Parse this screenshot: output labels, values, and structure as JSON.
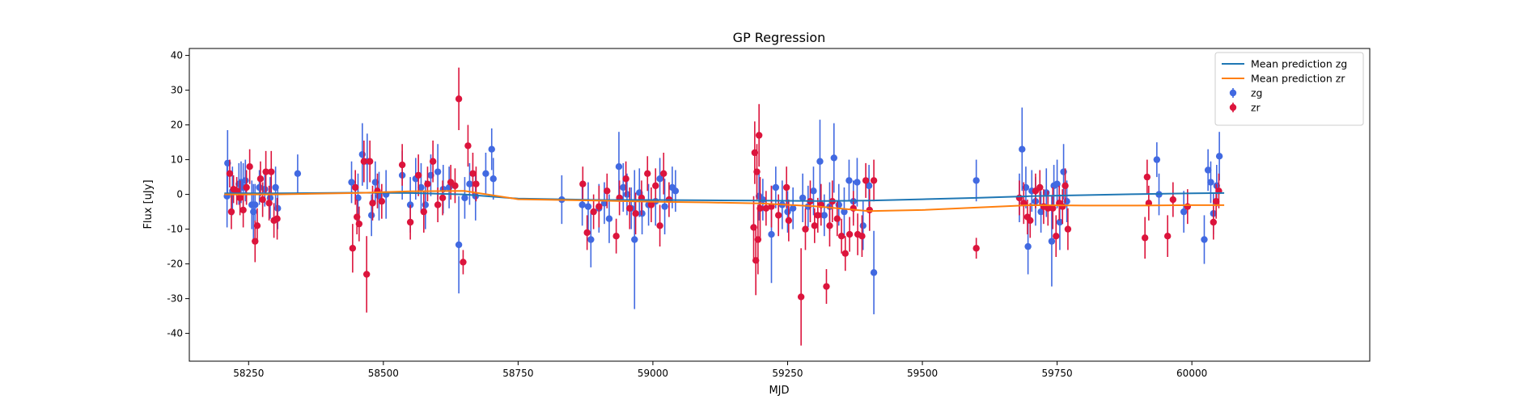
{
  "chart_data": {
    "type": "scatter",
    "title": "GP Regression",
    "xlabel": "MJD",
    "ylabel": "Flux [uJy]",
    "xlim": [
      58140,
      60330
    ],
    "ylim": [
      -48,
      42
    ],
    "xticks": [
      58250,
      58500,
      58750,
      59000,
      59250,
      59500,
      59750,
      60000
    ],
    "yticks": [
      -40,
      -30,
      -20,
      -10,
      0,
      10,
      20,
      30,
      40
    ],
    "grid": false,
    "legend_position": "top-right",
    "colors": {
      "zg": "#4169e1",
      "zr": "#dc143c",
      "mean_zg": "#1f77b4",
      "mean_zr": "#ff7f0e"
    },
    "series": [
      {
        "name": "Mean prediction zg",
        "kind": "line",
        "color": "#1f77b4",
        "x": [
          58205,
          58300,
          58450,
          58550,
          58650,
          58750,
          58900,
          59000,
          59100,
          59200,
          59300,
          59400,
          59500,
          59600,
          59700,
          59800,
          59900,
          60000,
          60060
        ],
        "y": [
          0.3,
          0.3,
          0.5,
          0.4,
          0.0,
          -1.2,
          -1.6,
          -1.6,
          -1.7,
          -1.8,
          -1.9,
          -1.8,
          -1.4,
          -1.0,
          -0.5,
          -0.2,
          0.1,
          0.3,
          0.4
        ]
      },
      {
        "name": "Mean prediction zr",
        "kind": "line",
        "color": "#ff7f0e",
        "x": [
          58205,
          58300,
          58450,
          58550,
          58650,
          58750,
          58900,
          59000,
          59100,
          59200,
          59300,
          59400,
          59500,
          59600,
          59700,
          59800,
          59900,
          60000,
          60060
        ],
        "y": [
          0.0,
          0.0,
          0.4,
          0.9,
          1.0,
          -1.4,
          -1.8,
          -2.1,
          -2.3,
          -2.6,
          -3.4,
          -4.8,
          -4.5,
          -3.8,
          -3.1,
          -3.2,
          -3.2,
          -3.1,
          -3.1
        ]
      },
      {
        "name": "zg",
        "kind": "errorbar",
        "color": "#4169e1",
        "points": [
          [
            58210,
            -0.5,
            9
          ],
          [
            58211,
            9,
            9.5
          ],
          [
            58220,
            1,
            7
          ],
          [
            58232,
            3,
            6
          ],
          [
            58236,
            3.5,
            6
          ],
          [
            58240,
            2,
            7
          ],
          [
            58244,
            4,
            6
          ],
          [
            58256,
            -3,
            7
          ],
          [
            58259,
            -5,
            8
          ],
          [
            58262,
            -3,
            6
          ],
          [
            58270,
            2,
            5
          ],
          [
            58280,
            1.5,
            5
          ],
          [
            58290,
            -1,
            6
          ],
          [
            58300,
            2,
            6
          ],
          [
            58304,
            -4,
            6
          ],
          [
            58341,
            6,
            5.5
          ],
          [
            58441,
            3.5,
            6
          ],
          [
            58453,
            -1,
            7
          ],
          [
            58461,
            11.5,
            9
          ],
          [
            58470,
            9.5,
            8
          ],
          [
            58478,
            -6,
            6
          ],
          [
            58485,
            3.5,
            6
          ],
          [
            58492,
            -0.5,
            7
          ],
          [
            58505,
            0,
            7
          ],
          [
            58535,
            5.5,
            7
          ],
          [
            58550,
            -3,
            8
          ],
          [
            58560,
            4.5,
            6
          ],
          [
            58570,
            2,
            7
          ],
          [
            58578,
            -3,
            7
          ],
          [
            58588,
            5.5,
            6
          ],
          [
            58601,
            6.5,
            8
          ],
          [
            58611,
            1.5,
            7
          ],
          [
            58622,
            2,
            6
          ],
          [
            58640,
            -14.5,
            14
          ],
          [
            58651,
            -1,
            6
          ],
          [
            58660,
            3,
            6
          ],
          [
            58671,
            -0.5,
            7
          ],
          [
            58690,
            6,
            6
          ],
          [
            58701,
            13,
            6
          ],
          [
            58704,
            4.5,
            6
          ],
          [
            58831,
            -1.5,
            7
          ],
          [
            58869,
            -3,
            6
          ],
          [
            58880,
            -3.5,
            7
          ],
          [
            58885,
            -13,
            8
          ],
          [
            58900,
            -4,
            7
          ],
          [
            58910,
            -2.5,
            6
          ],
          [
            58919,
            -7,
            7
          ],
          [
            58937,
            8,
            10
          ],
          [
            58945,
            2,
            7
          ],
          [
            58952,
            0,
            6
          ],
          [
            58960,
            -4,
            6
          ],
          [
            58966,
            -13,
            20
          ],
          [
            58975,
            0.5,
            7
          ],
          [
            58980,
            -5.5,
            6
          ],
          [
            58992,
            -3,
            6
          ],
          [
            59005,
            -2,
            7
          ],
          [
            59013,
            4.5,
            6
          ],
          [
            59022,
            -3.5,
            8
          ],
          [
            59036,
            2,
            6
          ],
          [
            59042,
            1,
            6
          ],
          [
            59197,
            -0.5,
            7
          ],
          [
            59204,
            -1.5,
            6
          ],
          [
            59220,
            -11.5,
            14
          ],
          [
            59228,
            2,
            6
          ],
          [
            59240,
            -3,
            7
          ],
          [
            59250,
            -5,
            6
          ],
          [
            59260,
            -4,
            6
          ],
          [
            59278,
            -1,
            7
          ],
          [
            59288,
            -3.5,
            6
          ],
          [
            59298,
            1,
            7
          ],
          [
            59310,
            9.5,
            12
          ],
          [
            59318,
            -6,
            6
          ],
          [
            59328,
            -3.5,
            7
          ],
          [
            59336,
            10.5,
            10
          ],
          [
            59345,
            -3,
            6
          ],
          [
            59355,
            -5,
            7
          ],
          [
            59364,
            4,
            6
          ],
          [
            59372,
            -2,
            6
          ],
          [
            59379,
            3.5,
            7
          ],
          [
            59390,
            -9,
            7
          ],
          [
            59401,
            2.5,
            6
          ],
          [
            59410,
            -22.5,
            12
          ],
          [
            59600,
            4,
            6
          ],
          [
            59680,
            -1,
            7
          ],
          [
            59685,
            13,
            12
          ],
          [
            59692,
            2,
            6
          ],
          [
            59696,
            -15,
            8
          ],
          [
            59703,
            1,
            6
          ],
          [
            59710,
            -2,
            7
          ],
          [
            59720,
            -5,
            6
          ],
          [
            59730,
            0.5,
            7
          ],
          [
            59740,
            -13.5,
            13
          ],
          [
            59744,
            2.5,
            6
          ],
          [
            59750,
            3,
            7
          ],
          [
            59755,
            -8,
            8
          ],
          [
            59762,
            6.5,
            8
          ],
          [
            59768,
            -2,
            6
          ],
          [
            59935,
            10,
            5
          ],
          [
            59939,
            0,
            6
          ],
          [
            59985,
            -5,
            6
          ],
          [
            60023,
            -13,
            7
          ],
          [
            60030,
            7,
            6
          ],
          [
            60035,
            3.5,
            6
          ],
          [
            60040,
            -5.5,
            6
          ],
          [
            60046,
            2.5,
            6
          ],
          [
            60051,
            11,
            7
          ]
        ]
      },
      {
        "name": "zr",
        "kind": "errorbar",
        "color": "#dc143c",
        "points": [
          [
            58215,
            6,
            4
          ],
          [
            58218,
            -5,
            5
          ],
          [
            58222,
            1.5,
            4
          ],
          [
            58228,
            1,
            4
          ],
          [
            58234,
            -1,
            5
          ],
          [
            58240,
            -4.5,
            5
          ],
          [
            58246,
            2,
            5
          ],
          [
            58252,
            8,
            5
          ],
          [
            58262,
            -13.5,
            6
          ],
          [
            58266,
            -9,
            5
          ],
          [
            58272,
            4.5,
            5
          ],
          [
            58276,
            -1.5,
            5
          ],
          [
            58282,
            6.5,
            6
          ],
          [
            58288,
            -2.5,
            5
          ],
          [
            58292,
            6.5,
            6
          ],
          [
            58297,
            -7.5,
            5
          ],
          [
            58303,
            -7,
            6
          ],
          [
            58443,
            -15.5,
            7
          ],
          [
            58448,
            2,
            5
          ],
          [
            58451,
            -6.5,
            5
          ],
          [
            58455,
            -8.5,
            5
          ],
          [
            58464,
            9.5,
            6
          ],
          [
            58469,
            -23,
            11
          ],
          [
            58475,
            9.5,
            6
          ],
          [
            58480,
            -2.5,
            5
          ],
          [
            58489,
            1,
            5
          ],
          [
            58497,
            -2,
            5
          ],
          [
            58535,
            8.5,
            6
          ],
          [
            58550,
            -8,
            5
          ],
          [
            58565,
            5.5,
            6
          ],
          [
            58575,
            -5,
            6
          ],
          [
            58582,
            3,
            5
          ],
          [
            58592,
            9.5,
            6
          ],
          [
            58601,
            -3,
            5
          ],
          [
            58610,
            -1,
            5
          ],
          [
            58625,
            3.5,
            5
          ],
          [
            58633,
            2.5,
            5
          ],
          [
            58640,
            27.5,
            9
          ],
          [
            58648,
            -19.5,
            3.5
          ],
          [
            58657,
            14,
            6
          ],
          [
            58666,
            6,
            6
          ],
          [
            58672,
            3,
            5
          ],
          [
            58870,
            3,
            5
          ],
          [
            58878,
            -11,
            5
          ],
          [
            58890,
            -5,
            5
          ],
          [
            58900,
            -3.5,
            6
          ],
          [
            58915,
            1,
            5
          ],
          [
            58932,
            -12,
            5
          ],
          [
            58938,
            -1,
            5
          ],
          [
            58950,
            4.5,
            5
          ],
          [
            58957,
            -4,
            6
          ],
          [
            58968,
            -5.5,
            6
          ],
          [
            58979,
            -1,
            5
          ],
          [
            58990,
            6,
            5
          ],
          [
            58997,
            -3,
            5
          ],
          [
            59005,
            2.5,
            5
          ],
          [
            59013,
            -9,
            6
          ],
          [
            59020,
            6,
            6
          ],
          [
            59030,
            -1.5,
            5
          ],
          [
            59187,
            -9.5,
            9
          ],
          [
            59189,
            12,
            9
          ],
          [
            59191,
            -19,
            10
          ],
          [
            59193,
            6.5,
            8
          ],
          [
            59195,
            -13,
            10
          ],
          [
            59197,
            17,
            9
          ],
          [
            59199,
            -4,
            9
          ],
          [
            59210,
            -4,
            5
          ],
          [
            59220,
            -3.5,
            6
          ],
          [
            59233,
            -6,
            6
          ],
          [
            59248,
            2,
            6
          ],
          [
            59252,
            -7.5,
            6
          ],
          [
            59275,
            -29.5,
            14
          ],
          [
            59283,
            -10,
            6
          ],
          [
            59292,
            -2,
            6
          ],
          [
            59300,
            -9,
            5
          ],
          [
            59306,
            -6,
            5
          ],
          [
            59312,
            -3,
            6
          ],
          [
            59322,
            -26.5,
            5
          ],
          [
            59328,
            -9,
            6
          ],
          [
            59333,
            -2,
            6
          ],
          [
            59342,
            -7,
            5
          ],
          [
            59350,
            -12,
            5
          ],
          [
            59357,
            -17,
            5
          ],
          [
            59365,
            -11.5,
            5
          ],
          [
            59372,
            -4,
            5
          ],
          [
            59380,
            -11.5,
            6
          ],
          [
            59388,
            -12,
            6
          ],
          [
            59395,
            4,
            5
          ],
          [
            59402,
            -4.5,
            6
          ],
          [
            59410,
            4,
            6
          ],
          [
            59600,
            -15.5,
            3
          ],
          [
            59680,
            -1,
            5
          ],
          [
            59688,
            -2.5,
            6
          ],
          [
            59695,
            -6.5,
            5
          ],
          [
            59700,
            -7.5,
            5
          ],
          [
            59710,
            1,
            5
          ],
          [
            59718,
            2,
            5
          ],
          [
            59725,
            -3.5,
            5
          ],
          [
            59733,
            -4,
            5
          ],
          [
            59742,
            -4,
            6
          ],
          [
            59748,
            -12,
            6
          ],
          [
            59754,
            -2.5,
            5
          ],
          [
            59760,
            -3.5,
            5
          ],
          [
            59765,
            2.5,
            5
          ],
          [
            59770,
            -10,
            6
          ],
          [
            59913,
            -12.5,
            6
          ],
          [
            59917,
            5,
            5
          ],
          [
            59920,
            -2.5,
            5
          ],
          [
            59955,
            -12,
            6
          ],
          [
            59965,
            -1.5,
            5
          ],
          [
            59992,
            -3.5,
            5
          ],
          [
            60040,
            -8,
            5
          ],
          [
            60045,
            -2,
            5
          ],
          [
            60050,
            1,
            5
          ]
        ]
      }
    ],
    "legend": [
      {
        "label": "Mean prediction zg",
        "marker": "line",
        "color": "#1f77b4"
      },
      {
        "label": "Mean prediction zr",
        "marker": "line",
        "color": "#ff7f0e"
      },
      {
        "label": "zg",
        "marker": "errorbar",
        "color": "#4169e1"
      },
      {
        "label": "zr",
        "marker": "errorbar",
        "color": "#dc143c"
      }
    ]
  }
}
